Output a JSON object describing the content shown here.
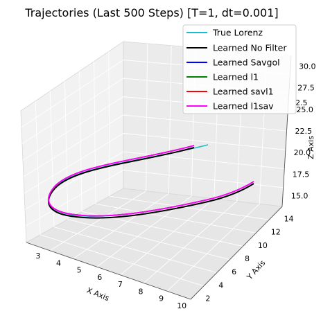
{
  "chart_data": {
    "type": "line",
    "projection": "3d",
    "title": "Trajectories (Last 500 Steps) [T=1, dt=0.001]",
    "xlabel": "X Axis",
    "ylabel": "Y Axis",
    "zlabel": "Z Axis",
    "x_ticks": [
      "3",
      "4",
      "5",
      "6",
      "7",
      "8",
      "9",
      "10"
    ],
    "y_ticks": [
      "2",
      "4",
      "6",
      "8",
      "10",
      "12",
      "14"
    ],
    "z_ticks": [
      "15.0",
      "17.5",
      "20.0",
      "22.5",
      "25.0",
      "27.5",
      "30.0",
      "2.5"
    ],
    "grid": true,
    "legend_position": "top-right",
    "series": [
      {
        "name": "True Lorenz",
        "color": "#17becf"
      },
      {
        "name": "Learned No Filter",
        "color": "#000000"
      },
      {
        "name": "Learned Savgol",
        "color": "#0000ff"
      },
      {
        "name": "Learned l1",
        "color": "#008000"
      },
      {
        "name": "Learned savl1",
        "color": "#ff0000"
      },
      {
        "name": "Learned l1sav",
        "color": "#ff00ff"
      }
    ]
  }
}
